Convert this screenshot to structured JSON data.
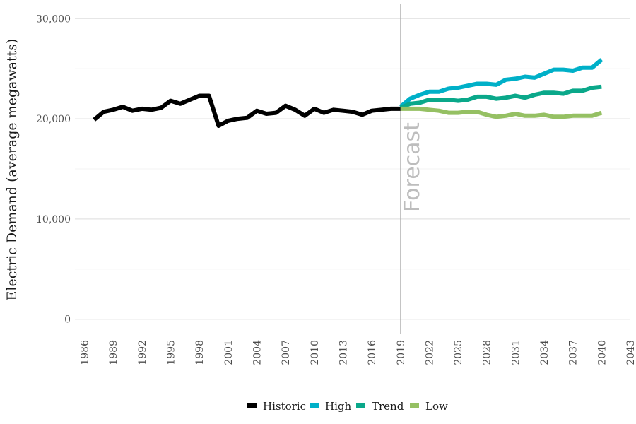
{
  "chart_data": {
    "type": "line",
    "title": "",
    "xlabel": "",
    "ylabel": "Electric Demand (average megawatts)",
    "xlim": [
      1985,
      2043
    ],
    "ylim": [
      -1500,
      31500
    ],
    "x_ticks": [
      1986,
      1989,
      1992,
      1995,
      1998,
      2001,
      2004,
      2007,
      2010,
      2013,
      2016,
      2019,
      2022,
      2025,
      2028,
      2031,
      2034,
      2037,
      2040,
      2043
    ],
    "y_ticks": [
      0,
      10000,
      20000,
      30000
    ],
    "y_tick_labels": [
      "0",
      "10,000",
      "20,000",
      "30,000"
    ],
    "grid": true,
    "legend_position": "bottom",
    "annotations": [
      {
        "text": "Forecast",
        "x": 2019
      }
    ],
    "series": [
      {
        "name": "Historic",
        "color": "#000000",
        "x": [
          1987,
          1988,
          1989,
          1990,
          1991,
          1992,
          1993,
          1994,
          1995,
          1996,
          1997,
          1998,
          1999,
          2000,
          2001,
          2002,
          2003,
          2004,
          2005,
          2006,
          2007,
          2008,
          2009,
          2010,
          2011,
          2012,
          2013,
          2014,
          2015,
          2016,
          2017,
          2018,
          2019
        ],
        "values": [
          19900,
          20700,
          20900,
          21200,
          20800,
          21000,
          20900,
          21100,
          21800,
          21500,
          21900,
          22300,
          22300,
          19300,
          19800,
          20000,
          20100,
          20800,
          20500,
          20600,
          21300,
          20900,
          20300,
          21000,
          20600,
          20900,
          20800,
          20700,
          20400,
          20800,
          20900,
          21000,
          21000
        ]
      },
      {
        "name": "High",
        "color": "#00b0c8",
        "x": [
          2019,
          2020,
          2021,
          2022,
          2023,
          2024,
          2025,
          2026,
          2027,
          2028,
          2029,
          2030,
          2031,
          2032,
          2033,
          2034,
          2035,
          2036,
          2037,
          2038,
          2039,
          2040
        ],
        "values": [
          21200,
          22000,
          22400,
          22700,
          22700,
          23000,
          23100,
          23300,
          23500,
          23500,
          23400,
          23900,
          24000,
          24200,
          24100,
          24500,
          24900,
          24900,
          24800,
          25100,
          25100,
          25900
        ]
      },
      {
        "name": "Trend",
        "color": "#0aa88a",
        "x": [
          2019,
          2020,
          2021,
          2022,
          2023,
          2024,
          2025,
          2026,
          2027,
          2028,
          2029,
          2030,
          2031,
          2032,
          2033,
          2034,
          2035,
          2036,
          2037,
          2038,
          2039,
          2040
        ],
        "values": [
          21100,
          21500,
          21600,
          21900,
          21900,
          21900,
          21800,
          21900,
          22200,
          22200,
          22000,
          22100,
          22300,
          22100,
          22400,
          22600,
          22600,
          22500,
          22800,
          22800,
          23100,
          23200
        ]
      },
      {
        "name": "Low",
        "color": "#95c063",
        "x": [
          2019,
          2020,
          2021,
          2022,
          2023,
          2024,
          2025,
          2026,
          2027,
          2028,
          2029,
          2030,
          2031,
          2032,
          2033,
          2034,
          2035,
          2036,
          2037,
          2038,
          2039,
          2040
        ],
        "values": [
          21000,
          21000,
          21000,
          20900,
          20800,
          20600,
          20600,
          20700,
          20700,
          20400,
          20200,
          20300,
          20500,
          20300,
          20300,
          20400,
          20200,
          20200,
          20300,
          20300,
          20300,
          20600
        ]
      }
    ]
  }
}
